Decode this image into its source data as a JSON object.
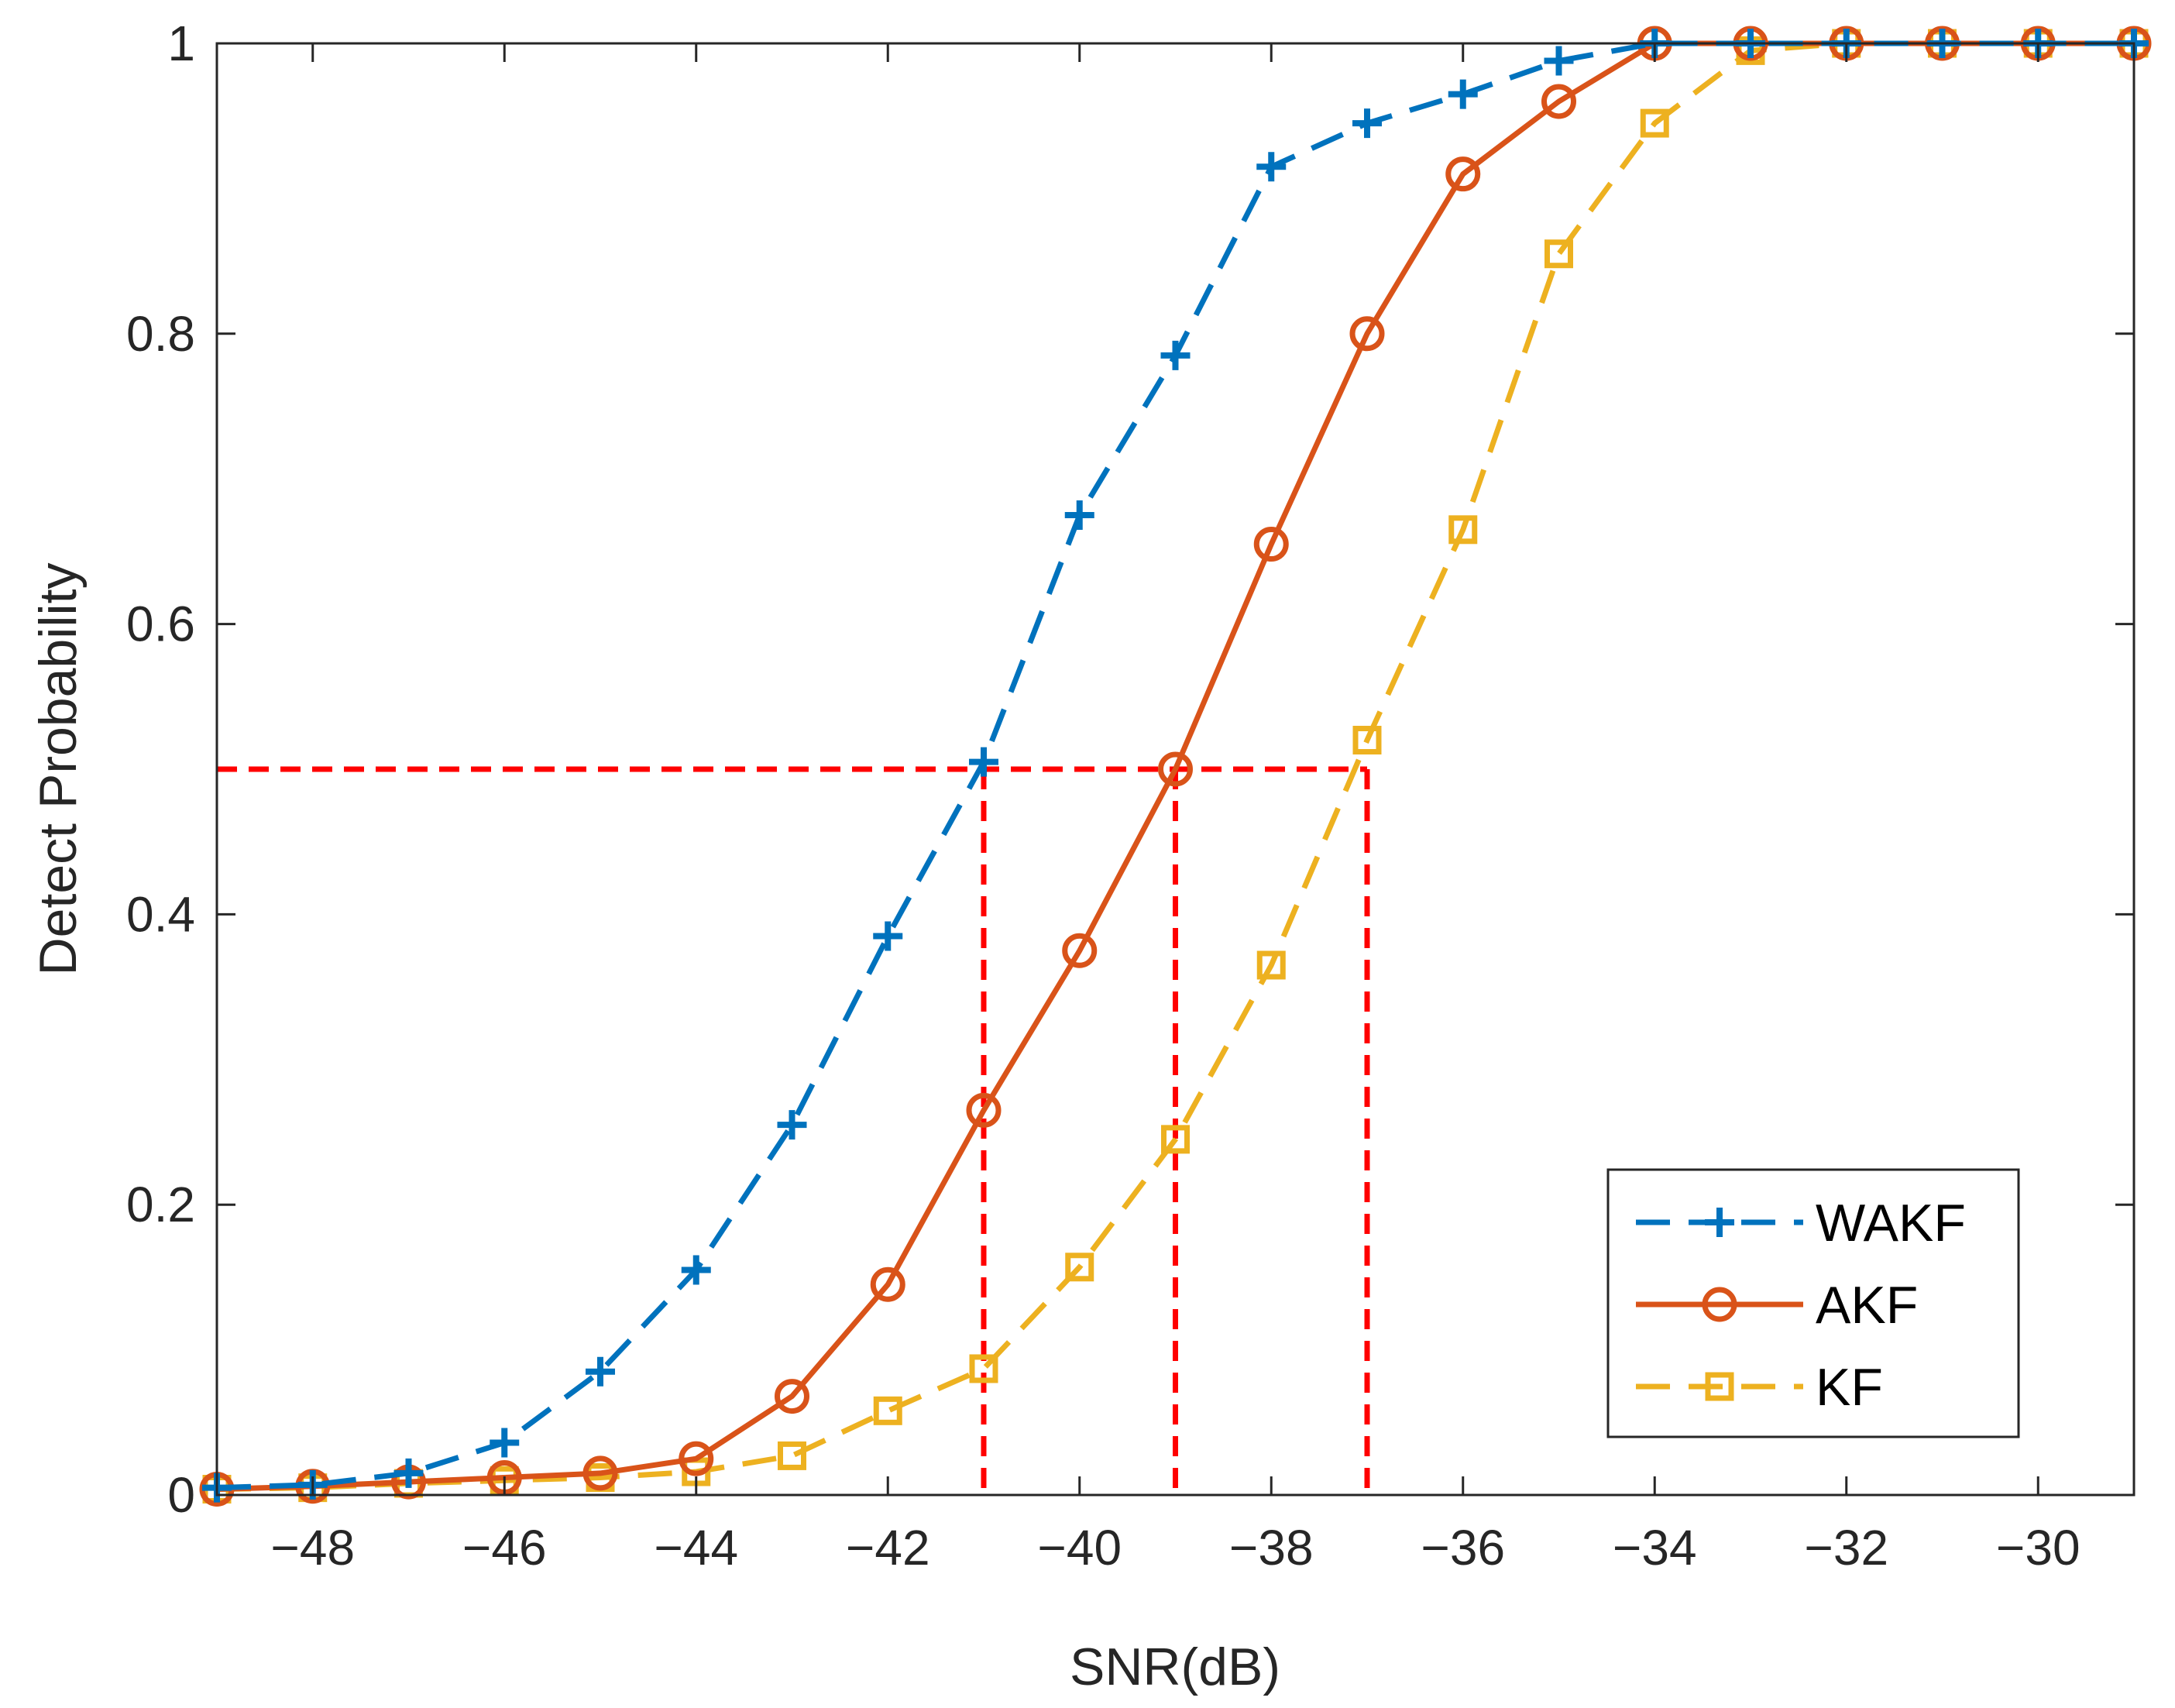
{
  "chart_data": {
    "type": "line",
    "title": "",
    "xlabel": "SNR(dB)",
    "ylabel": "Detect Probability",
    "xlim": [
      -49,
      -29
    ],
    "ylim": [
      0,
      1
    ],
    "xticks": [
      -48,
      -46,
      -44,
      -42,
      -40,
      -38,
      -36,
      -34,
      -32,
      -30
    ],
    "yticks": [
      0,
      0.2,
      0.4,
      0.6,
      0.8,
      1
    ],
    "grid": false,
    "legend_position": "bottom-right",
    "x": [
      -49,
      -48,
      -47,
      -46,
      -45,
      -44,
      -43,
      -42,
      -41,
      -40,
      -39,
      -38,
      -37,
      -36,
      -35,
      -34,
      -33,
      -32,
      -31,
      -30,
      -29
    ],
    "series": [
      {
        "name": "WAKF",
        "color": "#0072BD",
        "line": "dashed",
        "marker": "plus",
        "values": [
          0.005,
          0.007,
          0.015,
          0.036,
          0.085,
          0.155,
          0.255,
          0.385,
          0.505,
          0.675,
          0.785,
          0.915,
          0.945,
          0.965,
          0.988,
          1.0,
          1.0,
          1.0,
          1.0,
          1.0,
          1.0
        ]
      },
      {
        "name": "AKF",
        "color": "#D95319",
        "line": "solid",
        "marker": "circle",
        "values": [
          0.004,
          0.006,
          0.009,
          0.012,
          0.015,
          0.025,
          0.068,
          0.145,
          0.265,
          0.375,
          0.5,
          0.655,
          0.8,
          0.91,
          0.96,
          1.0,
          1.0,
          1.0,
          1.0,
          1.0,
          1.0
        ]
      },
      {
        "name": "KF",
        "color": "#EDB120",
        "line": "dashed",
        "marker": "square",
        "values": [
          0.004,
          0.005,
          0.008,
          0.01,
          0.012,
          0.016,
          0.027,
          0.058,
          0.087,
          0.157,
          0.245,
          0.365,
          0.52,
          0.665,
          0.855,
          0.945,
          0.995,
          1.0,
          1.0,
          1.0,
          1.0
        ]
      }
    ],
    "reference_lines": {
      "color": "#FF0000",
      "style": "dashed",
      "y_level": 0.5,
      "x_values": [
        -41,
        -39,
        -37
      ]
    }
  }
}
